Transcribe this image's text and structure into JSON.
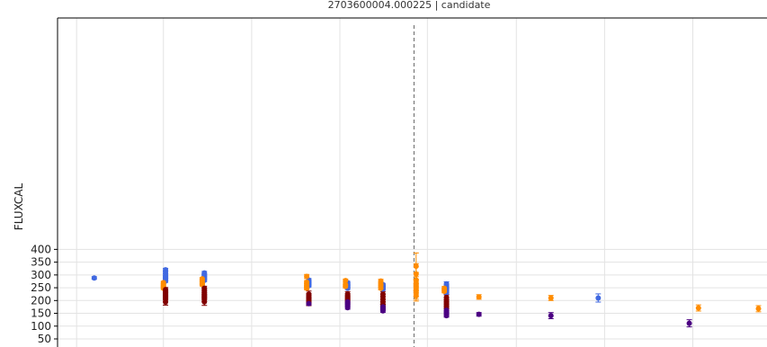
{
  "chart_data": {
    "type": "scatter",
    "title": "2703600004.000225 | candidate",
    "ylabel": "FLUXCAL",
    "xlabel": "",
    "ylim": [
      45,
      405
    ],
    "xlim": [
      0,
      100
    ],
    "yticks": [
      50,
      100,
      150,
      200,
      250,
      300,
      350,
      400
    ],
    "vertical_grid_x": [
      2.7,
      15.0,
      27.5,
      40.0,
      52.4,
      65.0,
      77.5,
      90.0
    ],
    "reference_line_x": 50.5,
    "grid": true,
    "series": [
      {
        "color": "#4169e1",
        "points": [
          {
            "x": 5.2,
            "y": 288,
            "err": 5
          },
          {
            "x": 15.3,
            "y": 320,
            "err": 6
          },
          {
            "x": 15.3,
            "y": 310,
            "err": 5
          },
          {
            "x": 15.3,
            "y": 300,
            "err": 5
          },
          {
            "x": 15.3,
            "y": 292,
            "err": 5
          },
          {
            "x": 15.3,
            "y": 287,
            "err": 5
          },
          {
            "x": 15.3,
            "y": 282,
            "err": 5
          },
          {
            "x": 15.3,
            "y": 276,
            "err": 5
          },
          {
            "x": 20.8,
            "y": 308,
            "err": 6
          },
          {
            "x": 20.8,
            "y": 300,
            "err": 5
          },
          {
            "x": 20.8,
            "y": 295,
            "err": 5
          },
          {
            "x": 20.8,
            "y": 290,
            "err": 5
          },
          {
            "x": 20.8,
            "y": 284,
            "err": 5
          },
          {
            "x": 20.8,
            "y": 279,
            "err": 5
          },
          {
            "x": 35.6,
            "y": 280,
            "err": 6
          },
          {
            "x": 35.6,
            "y": 274,
            "err": 5
          },
          {
            "x": 35.6,
            "y": 268,
            "err": 5
          },
          {
            "x": 35.6,
            "y": 263,
            "err": 5
          },
          {
            "x": 35.6,
            "y": 258,
            "err": 5
          },
          {
            "x": 41.1,
            "y": 270,
            "err": 5
          },
          {
            "x": 41.1,
            "y": 264,
            "err": 5
          },
          {
            "x": 41.1,
            "y": 258,
            "err": 5
          },
          {
            "x": 41.1,
            "y": 252,
            "err": 5
          },
          {
            "x": 41.1,
            "y": 248,
            "err": 5
          },
          {
            "x": 46.1,
            "y": 262,
            "err": 5
          },
          {
            "x": 46.1,
            "y": 256,
            "err": 5
          },
          {
            "x": 46.1,
            "y": 250,
            "err": 5
          },
          {
            "x": 46.1,
            "y": 245,
            "err": 5
          },
          {
            "x": 55.1,
            "y": 265,
            "err": 8
          },
          {
            "x": 55.1,
            "y": 258,
            "err": 6
          },
          {
            "x": 55.1,
            "y": 250,
            "err": 6
          },
          {
            "x": 55.1,
            "y": 243,
            "err": 6
          },
          {
            "x": 55.1,
            "y": 236,
            "err": 6
          },
          {
            "x": 55.1,
            "y": 230,
            "err": 6
          },
          {
            "x": 76.6,
            "y": 210,
            "err": 16
          }
        ]
      },
      {
        "color": "#ff8c00",
        "points": [
          {
            "x": 15.0,
            "y": 270,
            "err": 5
          },
          {
            "x": 15.0,
            "y": 262,
            "err": 5
          },
          {
            "x": 15.0,
            "y": 255,
            "err": 5
          },
          {
            "x": 15.0,
            "y": 248,
            "err": 5
          },
          {
            "x": 20.5,
            "y": 285,
            "err": 5
          },
          {
            "x": 20.5,
            "y": 278,
            "err": 5
          },
          {
            "x": 20.5,
            "y": 270,
            "err": 5
          },
          {
            "x": 20.5,
            "y": 262,
            "err": 5
          },
          {
            "x": 35.3,
            "y": 294,
            "err": 8
          },
          {
            "x": 35.3,
            "y": 272,
            "err": 6
          },
          {
            "x": 35.3,
            "y": 262,
            "err": 6
          },
          {
            "x": 35.3,
            "y": 253,
            "err": 6
          },
          {
            "x": 35.3,
            "y": 248,
            "err": 6
          },
          {
            "x": 40.8,
            "y": 278,
            "err": 6
          },
          {
            "x": 40.8,
            "y": 262,
            "err": 6
          },
          {
            "x": 40.8,
            "y": 255,
            "err": 6
          },
          {
            "x": 45.8,
            "y": 276,
            "err": 7
          },
          {
            "x": 45.8,
            "y": 265,
            "err": 6
          },
          {
            "x": 45.8,
            "y": 258,
            "err": 6
          },
          {
            "x": 45.8,
            "y": 248,
            "err": 6
          },
          {
            "x": 50.8,
            "y": 334,
            "err": 52
          },
          {
            "x": 50.8,
            "y": 304,
            "err": 40
          },
          {
            "x": 50.8,
            "y": 280,
            "err": 30
          },
          {
            "x": 50.8,
            "y": 268,
            "err": 25
          },
          {
            "x": 50.8,
            "y": 258,
            "err": 25
          },
          {
            "x": 50.8,
            "y": 250,
            "err": 25
          },
          {
            "x": 50.8,
            "y": 240,
            "err": 25
          },
          {
            "x": 50.8,
            "y": 230,
            "err": 25
          },
          {
            "x": 50.8,
            "y": 218,
            "err": 20
          },
          {
            "x": 54.8,
            "y": 248,
            "err": 7
          },
          {
            "x": 54.8,
            "y": 242,
            "err": 6
          },
          {
            "x": 54.8,
            "y": 236,
            "err": 6
          },
          {
            "x": 59.7,
            "y": 214,
            "err": 9
          },
          {
            "x": 69.9,
            "y": 210,
            "err": 10
          },
          {
            "x": 90.8,
            "y": 171,
            "err": 12
          },
          {
            "x": 99.3,
            "y": 168,
            "err": 12
          }
        ]
      },
      {
        "color": "#800000",
        "points": [
          {
            "x": 15.3,
            "y": 243,
            "err": 8
          },
          {
            "x": 15.3,
            "y": 237,
            "err": 8
          },
          {
            "x": 15.3,
            "y": 230,
            "err": 8
          },
          {
            "x": 15.3,
            "y": 224,
            "err": 8
          },
          {
            "x": 15.3,
            "y": 218,
            "err": 8
          },
          {
            "x": 15.3,
            "y": 212,
            "err": 8
          },
          {
            "x": 15.3,
            "y": 205,
            "err": 8
          },
          {
            "x": 15.3,
            "y": 194,
            "err": 12
          },
          {
            "x": 20.8,
            "y": 248,
            "err": 8
          },
          {
            "x": 20.8,
            "y": 240,
            "err": 8
          },
          {
            "x": 20.8,
            "y": 232,
            "err": 8
          },
          {
            "x": 20.8,
            "y": 225,
            "err": 8
          },
          {
            "x": 20.8,
            "y": 218,
            "err": 8
          },
          {
            "x": 20.8,
            "y": 212,
            "err": 8
          },
          {
            "x": 20.8,
            "y": 204,
            "err": 8
          },
          {
            "x": 20.8,
            "y": 195,
            "err": 14
          },
          {
            "x": 35.6,
            "y": 225,
            "err": 12
          },
          {
            "x": 35.6,
            "y": 218,
            "err": 10
          },
          {
            "x": 35.6,
            "y": 210,
            "err": 10
          },
          {
            "x": 35.6,
            "y": 203,
            "err": 10
          },
          {
            "x": 35.6,
            "y": 196,
            "err": 10
          },
          {
            "x": 35.6,
            "y": 190,
            "err": 10
          },
          {
            "x": 41.1,
            "y": 225,
            "err": 10
          },
          {
            "x": 41.1,
            "y": 218,
            "err": 10
          },
          {
            "x": 41.1,
            "y": 210,
            "err": 10
          },
          {
            "x": 41.1,
            "y": 203,
            "err": 10
          },
          {
            "x": 41.1,
            "y": 196,
            "err": 10
          },
          {
            "x": 46.1,
            "y": 225,
            "err": 10
          },
          {
            "x": 46.1,
            "y": 215,
            "err": 10
          },
          {
            "x": 46.1,
            "y": 205,
            "err": 10
          },
          {
            "x": 46.1,
            "y": 195,
            "err": 10
          },
          {
            "x": 46.1,
            "y": 185,
            "err": 10
          },
          {
            "x": 46.1,
            "y": 176,
            "err": 10
          },
          {
            "x": 55.1,
            "y": 212,
            "err": 10
          },
          {
            "x": 55.1,
            "y": 203,
            "err": 10
          },
          {
            "x": 55.1,
            "y": 195,
            "err": 10
          },
          {
            "x": 55.1,
            "y": 186,
            "err": 10
          },
          {
            "x": 55.1,
            "y": 178,
            "err": 10
          },
          {
            "x": 55.1,
            "y": 170,
            "err": 10
          }
        ]
      },
      {
        "color": "#4b0082",
        "points": [
          {
            "x": 35.6,
            "y": 188,
            "err": 6
          },
          {
            "x": 41.1,
            "y": 195,
            "err": 6
          },
          {
            "x": 41.1,
            "y": 187,
            "err": 6
          },
          {
            "x": 41.1,
            "y": 180,
            "err": 6
          },
          {
            "x": 41.1,
            "y": 172,
            "err": 6
          },
          {
            "x": 46.1,
            "y": 175,
            "err": 6
          },
          {
            "x": 46.1,
            "y": 168,
            "err": 6
          },
          {
            "x": 46.1,
            "y": 160,
            "err": 6
          },
          {
            "x": 55.1,
            "y": 162,
            "err": 6
          },
          {
            "x": 55.1,
            "y": 155,
            "err": 6
          },
          {
            "x": 55.1,
            "y": 148,
            "err": 6
          },
          {
            "x": 55.1,
            "y": 141,
            "err": 6
          },
          {
            "x": 59.7,
            "y": 146,
            "err": 7
          },
          {
            "x": 69.9,
            "y": 141,
            "err": 12
          },
          {
            "x": 89.5,
            "y": 111,
            "err": 14
          }
        ]
      }
    ]
  }
}
